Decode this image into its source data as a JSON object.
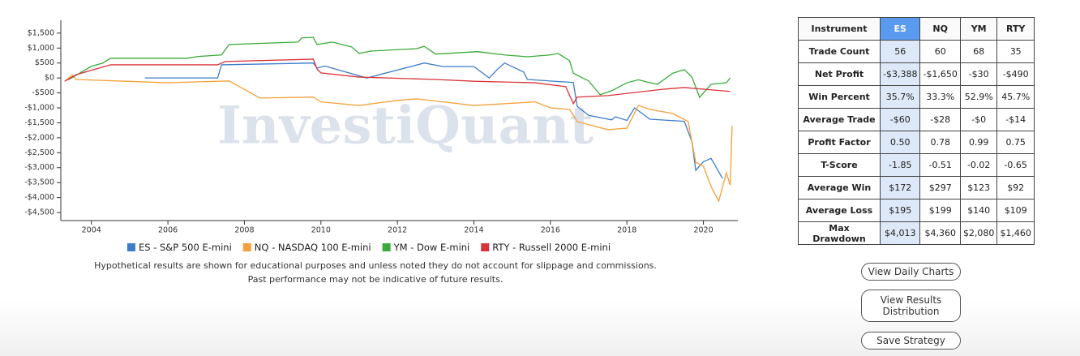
{
  "chart_data": {
    "type": "line",
    "watermark": "InvestiQuant",
    "xlim": [
      2003.2,
      2020.9
    ],
    "xticks": [
      2004,
      2006,
      2008,
      2010,
      2012,
      2014,
      2016,
      2018,
      2020
    ],
    "ylim": [
      -4770,
      1930
    ],
    "yticks": [
      {
        "value": -4500,
        "label": "-$4,500"
      },
      {
        "value": -4000,
        "label": "-$4,000"
      },
      {
        "value": -3500,
        "label": "-$3,500"
      },
      {
        "value": -3000,
        "label": "-$3,000"
      },
      {
        "value": -2500,
        "label": "-$2,500"
      },
      {
        "value": -2000,
        "label": "-$2,000"
      },
      {
        "value": -1500,
        "label": "-$1,500"
      },
      {
        "value": -1000,
        "label": "-$1,000"
      },
      {
        "value": -500,
        "label": "-$500"
      },
      {
        "value": 0,
        "label": "$0"
      },
      {
        "value": 500,
        "label": "$500"
      },
      {
        "value": 1000,
        "label": "$1,000"
      },
      {
        "value": 1500,
        "label": "$1,500"
      }
    ],
    "series": [
      {
        "name": "ES - S&P 500 E-mini",
        "color": "#3d7cc9",
        "x": [
          2005.4,
          2007.3,
          2007.4,
          2009.8,
          2009.9,
          2010.1,
          2011.2,
          2012.7,
          2013.2,
          2014.0,
          2014.4,
          2014.6,
          2014.8,
          2015.3,
          2015.4,
          2016.0,
          2016.6,
          2016.7,
          2017.0,
          2017.6,
          2017.7,
          2018.0,
          2018.2,
          2018.6,
          2019.5,
          2019.7,
          2019.8,
          2020.0,
          2020.2,
          2020.5
        ],
        "values": [
          0,
          0,
          440,
          500,
          330,
          400,
          0,
          500,
          380,
          380,
          0,
          270,
          500,
          200,
          -50,
          -100,
          -150,
          -950,
          -1250,
          -1400,
          -1300,
          -1420,
          -1000,
          -1380,
          -1450,
          -2130,
          -3090,
          -2800,
          -2690,
          -3360
        ]
      },
      {
        "name": "NQ - NASDAQ 100 E-mini",
        "color": "#f5a03a",
        "x": [
          2003.3,
          2003.5,
          2003.6,
          2006.0,
          2007.6,
          2008.0,
          2008.4,
          2009.8,
          2010.0,
          2011.0,
          2012.0,
          2012.5,
          2013.2,
          2014.0,
          2015.6,
          2016.0,
          2016.5,
          2016.6,
          2016.7,
          2017.5,
          2018.0,
          2018.3,
          2018.6,
          2019.2,
          2019.6,
          2019.8,
          2020.0,
          2020.2,
          2020.4,
          2020.6,
          2020.7,
          2020.75
        ],
        "values": [
          -110,
          100,
          -50,
          -160,
          -100,
          -380,
          -670,
          -640,
          -800,
          -920,
          -750,
          -700,
          -800,
          -920,
          -800,
          -1000,
          -1050,
          -1240,
          -1460,
          -1730,
          -1680,
          -920,
          -1050,
          -1190,
          -1460,
          -2820,
          -2950,
          -3630,
          -4120,
          -3170,
          -3580,
          -1600
        ]
      },
      {
        "name": "YM - Dow E-mini",
        "color": "#3aaa3a",
        "x": [
          2003.4,
          2004.0,
          2004.3,
          2004.5,
          2006.5,
          2006.8,
          2007.4,
          2007.6,
          2009.4,
          2009.5,
          2009.8,
          2009.9,
          2010.3,
          2010.8,
          2011.0,
          2011.3,
          2012.5,
          2012.7,
          2013.0,
          2014.1,
          2014.8,
          2015.4,
          2016.0,
          2016.2,
          2016.5,
          2016.6,
          2017.0,
          2017.3,
          2017.6,
          2018.0,
          2018.3,
          2018.6,
          2018.8,
          2019.2,
          2019.5,
          2019.7,
          2019.9,
          2020.2,
          2020.6,
          2020.7
        ],
        "values": [
          -60,
          390,
          500,
          660,
          660,
          720,
          770,
          1120,
          1200,
          1340,
          1360,
          1120,
          1200,
          1040,
          820,
          900,
          980,
          1060,
          800,
          880,
          770,
          710,
          770,
          820,
          580,
          160,
          -100,
          -560,
          -430,
          -160,
          -60,
          -160,
          -210,
          160,
          280,
          30,
          -650,
          -210,
          -160,
          0
        ]
      },
      {
        "name": "RTY - Russell 2000 E-mini",
        "color": "#d9333a",
        "x": [
          2003.3,
          2003.6,
          2004.5,
          2007.3,
          2007.5,
          2009.8,
          2009.9,
          2010.0,
          2011.0,
          2013.0,
          2014.0,
          2015.6,
          2016.4,
          2016.6,
          2016.7,
          2017.5,
          2019.0,
          2019.5,
          2020.7
        ],
        "values": [
          -110,
          110,
          440,
          440,
          550,
          630,
          300,
          170,
          30,
          -50,
          -110,
          -160,
          -290,
          -860,
          -640,
          -590,
          -370,
          -320,
          -450
        ]
      }
    ]
  },
  "disclaimer": [
    "Hypothetical results are shown for educational purposes and unless noted they do not account for slippage and commissions.",
    "Past performance may not be indicative of future results."
  ],
  "table": {
    "header": [
      "Instrument",
      "ES",
      "NQ",
      "YM",
      "RTY"
    ],
    "rows": [
      [
        "Trade Count",
        "56",
        "60",
        "68",
        "35"
      ],
      [
        "Net Profit",
        "-$3,388",
        "-$1,650",
        "-$30",
        "-$490"
      ],
      [
        "Win Percent",
        "35.7%",
        "33.3%",
        "52.9%",
        "45.7%"
      ],
      [
        "Average Trade",
        "-$60",
        "-$28",
        "-$0",
        "-$14"
      ],
      [
        "Profit Factor",
        "0.50",
        "0.78",
        "0.99",
        "0.75"
      ],
      [
        "T-Score",
        "-1.85",
        "-0.51",
        "-0.02",
        "-0.65"
      ],
      [
        "Average Win",
        "$172",
        "$297",
        "$123",
        "$92"
      ],
      [
        "Average Loss",
        "$195",
        "$199",
        "$140",
        "$109"
      ],
      [
        "Max Drawdown",
        "$4,013",
        "$4,360",
        "$2,080",
        "$1,460"
      ]
    ]
  },
  "buttons": [
    "View Daily Charts",
    "View Results Distribution",
    "Save Strategy"
  ]
}
